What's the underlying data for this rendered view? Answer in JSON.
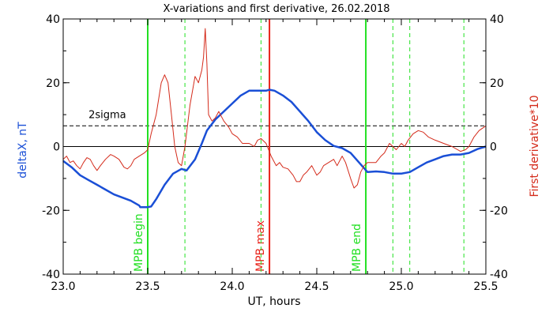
{
  "chart_data": {
    "type": "line",
    "title": "X-variations and first derivative, 26.02.2018",
    "xlabel": "UT, hours",
    "ylabel_left": "deltaX, nT",
    "ylabel_right": "First derivative*10",
    "xlim": [
      23.0,
      25.5
    ],
    "ylim": [
      -40,
      40
    ],
    "x_ticks": [
      "23.0",
      "23.5",
      "24.0",
      "24.5",
      "25.0",
      "25.5"
    ],
    "y_ticks_left": [
      "40",
      "20",
      "0",
      "-20",
      "-40"
    ],
    "y_ticks_right": [
      "40",
      "20",
      "0",
      "-20",
      "-40"
    ],
    "colors": {
      "deltax": "#1a4fd6",
      "derivative": "#d42a1a",
      "mpb_marker": "#22e022",
      "mpb_max": "#e8231a",
      "reference": "#000000"
    },
    "series": [
      {
        "key": "deltax",
        "name": "deltaX, nT",
        "points": [
          [
            23.0,
            -4.5
          ],
          [
            23.05,
            -6.5
          ],
          [
            23.1,
            -9
          ],
          [
            23.15,
            -10.5
          ],
          [
            23.2,
            -12
          ],
          [
            23.25,
            -13.5
          ],
          [
            23.3,
            -15
          ],
          [
            23.35,
            -16
          ],
          [
            23.4,
            -17
          ],
          [
            23.45,
            -18.5
          ],
          [
            23.455,
            -19
          ],
          [
            23.5,
            -19
          ],
          [
            23.52,
            -18.8
          ],
          [
            23.55,
            -16.5
          ],
          [
            23.6,
            -12
          ],
          [
            23.65,
            -8.5
          ],
          [
            23.7,
            -7
          ],
          [
            23.73,
            -7.5
          ],
          [
            23.78,
            -4
          ],
          [
            23.82,
            1
          ],
          [
            23.85,
            5
          ],
          [
            23.9,
            8.5
          ],
          [
            23.95,
            11
          ],
          [
            24.0,
            13.5
          ],
          [
            24.05,
            16
          ],
          [
            24.1,
            17.5
          ],
          [
            24.15,
            17.5
          ],
          [
            24.2,
            17.5
          ],
          [
            24.22,
            17.8
          ],
          [
            24.25,
            17.5
          ],
          [
            24.3,
            16
          ],
          [
            24.35,
            14
          ],
          [
            24.4,
            11
          ],
          [
            24.45,
            8
          ],
          [
            24.5,
            4.5
          ],
          [
            24.55,
            2
          ],
          [
            24.6,
            0.2
          ],
          [
            24.65,
            -0.5
          ],
          [
            24.7,
            -2
          ],
          [
            24.75,
            -5
          ],
          [
            24.8,
            -8
          ],
          [
            24.85,
            -7.8
          ],
          [
            24.9,
            -8
          ],
          [
            24.95,
            -8.5
          ],
          [
            25.0,
            -8.5
          ],
          [
            25.05,
            -8
          ],
          [
            25.1,
            -6.5
          ],
          [
            25.15,
            -5
          ],
          [
            25.2,
            -4
          ],
          [
            25.25,
            -3
          ],
          [
            25.3,
            -2.5
          ],
          [
            25.35,
            -2.5
          ],
          [
            25.4,
            -2
          ],
          [
            25.45,
            -0.8
          ],
          [
            25.5,
            0
          ]
        ]
      },
      {
        "key": "derivative",
        "name": "First derivative*10",
        "points": [
          [
            23.0,
            -4
          ],
          [
            23.02,
            -3
          ],
          [
            23.04,
            -5
          ],
          [
            23.06,
            -4.5
          ],
          [
            23.08,
            -6
          ],
          [
            23.1,
            -7
          ],
          [
            23.12,
            -5
          ],
          [
            23.14,
            -3.5
          ],
          [
            23.16,
            -4
          ],
          [
            23.18,
            -6
          ],
          [
            23.2,
            -7.5
          ],
          [
            23.22,
            -6
          ],
          [
            23.25,
            -4
          ],
          [
            23.28,
            -2.5
          ],
          [
            23.3,
            -3
          ],
          [
            23.33,
            -4
          ],
          [
            23.36,
            -6.5
          ],
          [
            23.38,
            -7
          ],
          [
            23.4,
            -6
          ],
          [
            23.42,
            -4
          ],
          [
            23.45,
            -3
          ],
          [
            23.48,
            -2
          ],
          [
            23.5,
            -1
          ],
          [
            23.52,
            4
          ],
          [
            23.55,
            10
          ],
          [
            23.58,
            20
          ],
          [
            23.6,
            22.5
          ],
          [
            23.62,
            20
          ],
          [
            23.64,
            10
          ],
          [
            23.66,
            0
          ],
          [
            23.68,
            -5
          ],
          [
            23.7,
            -6
          ],
          [
            23.72,
            0
          ],
          [
            23.75,
            13
          ],
          [
            23.78,
            22
          ],
          [
            23.8,
            20
          ],
          [
            23.82,
            24
          ],
          [
            23.83,
            28
          ],
          [
            23.84,
            37
          ],
          [
            23.85,
            26
          ],
          [
            23.86,
            10
          ],
          [
            23.88,
            8
          ],
          [
            23.9,
            9
          ],
          [
            23.92,
            11
          ],
          [
            23.95,
            8
          ],
          [
            23.98,
            6
          ],
          [
            24.0,
            4
          ],
          [
            24.03,
            3
          ],
          [
            24.06,
            1
          ],
          [
            24.1,
            1
          ],
          [
            24.13,
            0
          ],
          [
            24.15,
            2
          ],
          [
            24.17,
            2.5
          ],
          [
            24.2,
            1
          ],
          [
            24.23,
            -3
          ],
          [
            24.26,
            -6
          ],
          [
            24.28,
            -5
          ],
          [
            24.3,
            -6.5
          ],
          [
            24.33,
            -7
          ],
          [
            24.36,
            -9
          ],
          [
            24.38,
            -11
          ],
          [
            24.4,
            -11
          ],
          [
            24.42,
            -9
          ],
          [
            24.44,
            -8
          ],
          [
            24.47,
            -6
          ],
          [
            24.5,
            -9
          ],
          [
            24.52,
            -8
          ],
          [
            24.54,
            -6
          ],
          [
            24.57,
            -5
          ],
          [
            24.6,
            -4
          ],
          [
            24.62,
            -6
          ],
          [
            24.65,
            -3
          ],
          [
            24.67,
            -5
          ],
          [
            24.7,
            -10
          ],
          [
            24.72,
            -13
          ],
          [
            24.74,
            -12
          ],
          [
            24.76,
            -8
          ],
          [
            24.78,
            -6
          ],
          [
            24.8,
            -5
          ],
          [
            24.85,
            -5
          ],
          [
            24.88,
            -3
          ],
          [
            24.9,
            -2
          ],
          [
            24.93,
            1
          ],
          [
            24.95,
            0
          ],
          [
            24.97,
            -1
          ],
          [
            25.0,
            1
          ],
          [
            25.02,
            0
          ],
          [
            25.04,
            2
          ],
          [
            25.07,
            4
          ],
          [
            25.1,
            5
          ],
          [
            25.13,
            4.5
          ],
          [
            25.16,
            3
          ],
          [
            25.2,
            2
          ],
          [
            25.25,
            1
          ],
          [
            25.3,
            0
          ],
          [
            25.35,
            -1.5
          ],
          [
            25.38,
            -1
          ],
          [
            25.4,
            0
          ],
          [
            25.43,
            3
          ],
          [
            25.46,
            5
          ],
          [
            25.5,
            6.5
          ]
        ]
      }
    ],
    "reference_lines": [
      {
        "key": "zero",
        "y": 0,
        "style": "solid"
      },
      {
        "key": "2sigma",
        "y": 6.5,
        "style": "dashed",
        "label": "2sigma"
      }
    ],
    "markers": [
      {
        "key": "mpb-begin",
        "x": 23.5,
        "label": "MPB begin",
        "color": "mpb_marker",
        "style": "solid"
      },
      {
        "key": "mpb-max",
        "x": 24.22,
        "label": "MPB max",
        "color": "mpb_max",
        "style": "solid"
      },
      {
        "key": "mpb-end",
        "x": 24.79,
        "label": "MPB end",
        "color": "mpb_marker",
        "style": "solid"
      },
      {
        "key": "green-dash-1",
        "x": 23.72,
        "label": "",
        "color": "mpb_marker",
        "style": "dashed"
      },
      {
        "key": "green-dash-2",
        "x": 24.17,
        "label": "",
        "color": "mpb_marker",
        "style": "dashed"
      },
      {
        "key": "green-dash-3",
        "x": 24.95,
        "label": "",
        "color": "mpb_marker",
        "style": "dashed"
      },
      {
        "key": "green-dash-4",
        "x": 25.05,
        "label": "",
        "color": "mpb_marker",
        "style": "dashed"
      },
      {
        "key": "green-dash-5",
        "x": 25.37,
        "label": "",
        "color": "mpb_marker",
        "style": "dashed"
      }
    ]
  }
}
